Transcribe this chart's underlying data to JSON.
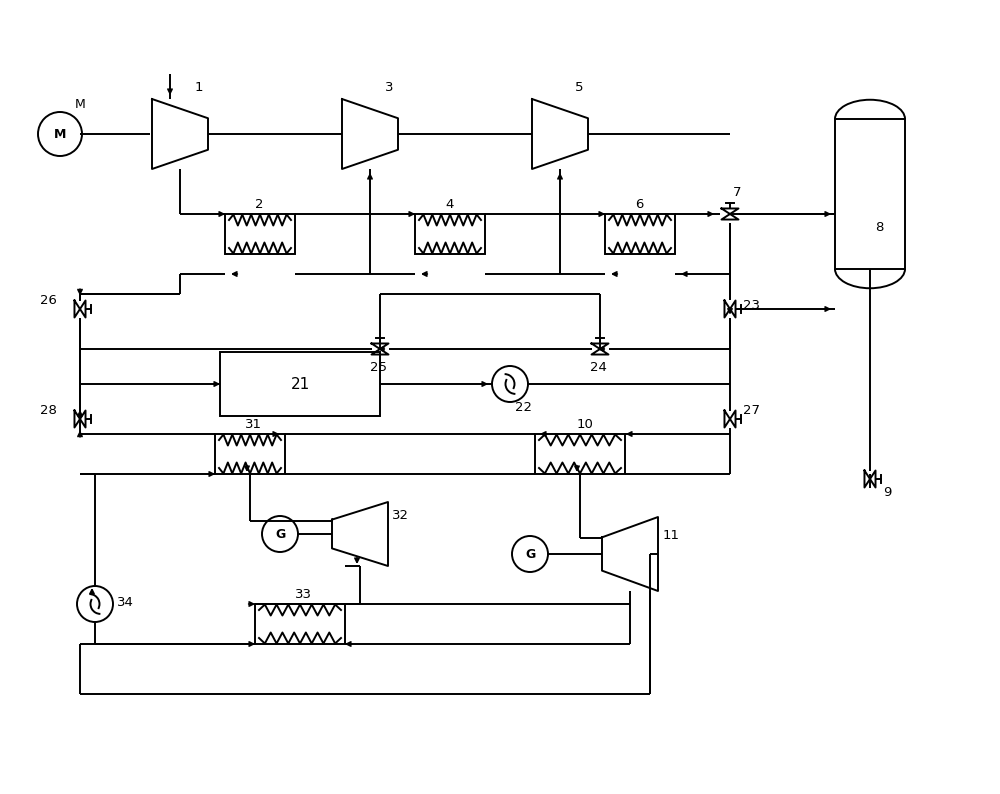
{
  "bg_color": "#ffffff",
  "line_color": "#000000",
  "lw": 1.4,
  "fig_width": 10.0,
  "fig_height": 7.94,
  "xlim": [
    0,
    100
  ],
  "ylim": [
    0,
    79.4
  ]
}
